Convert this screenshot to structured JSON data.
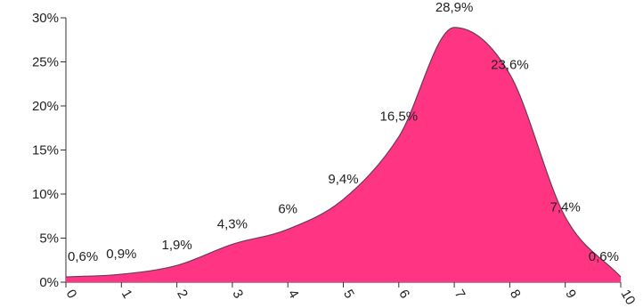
{
  "chart_data": {
    "type": "area",
    "title": "",
    "xlabel": "",
    "ylabel": "",
    "x": [
      0,
      1,
      2,
      3,
      4,
      5,
      6,
      7,
      8,
      9,
      10
    ],
    "x_tick_labels": [
      "0",
      "1",
      "2",
      "3",
      "4",
      "5",
      "6",
      "7",
      "8",
      "9",
      "10"
    ],
    "series": [
      {
        "values": [
          0.6,
          0.9,
          1.9,
          4.3,
          6,
          9.4,
          16.5,
          28.9,
          23.6,
          7.4,
          0.6
        ],
        "labels": [
          "0,6%",
          "0,9%",
          "1,9%",
          "4,3%",
          "6%",
          "9,4%",
          "16,5%",
          "28,9%",
          "23,6%",
          "7,4%",
          "0,6%"
        ],
        "fill": "#ff3584",
        "stroke": "#6b3a5b"
      }
    ],
    "ylim": [
      0,
      30
    ],
    "y_ticks": [
      0,
      5,
      10,
      15,
      20,
      25,
      30
    ],
    "y_tick_labels": [
      "0%",
      "5%",
      "10%",
      "15%",
      "20%",
      "25%",
      "30%"
    ],
    "x_tick_label_rotation": "rotated ~60°",
    "grid": false,
    "legend": "none"
  }
}
